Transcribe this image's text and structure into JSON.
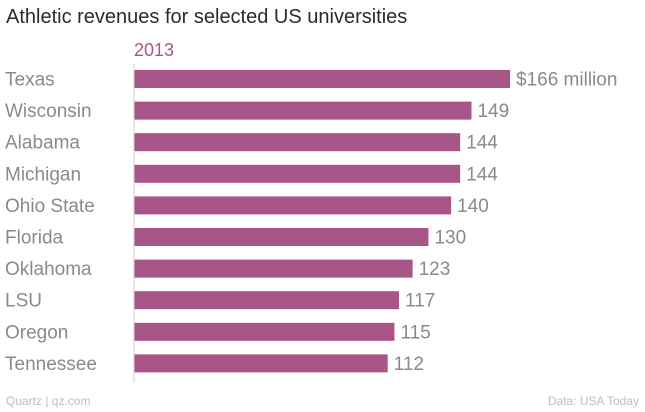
{
  "chart_data": {
    "type": "bar",
    "orientation": "horizontal",
    "title": "Athletic revenues for selected US universities",
    "series": [
      {
        "name": "2013",
        "color": "#a85588",
        "values": [
          166,
          149,
          144,
          144,
          140,
          130,
          123,
          117,
          115,
          112
        ]
      }
    ],
    "categories": [
      "Texas",
      "Wisconsin",
      "Alabama",
      "Michigan",
      "Ohio State",
      "Florida",
      "Oklahoma",
      "LSU",
      "Oregon",
      "Tennessee"
    ],
    "value_labels": [
      "$166 million",
      "149",
      "144",
      "144",
      "140",
      "130",
      "123",
      "117",
      "115",
      "112"
    ],
    "xlim": [
      0,
      166
    ],
    "grid": false,
    "legend": "top-left"
  },
  "footer": {
    "credit": "Quartz | qz.com",
    "source": "Data: USA Today"
  },
  "colors": {
    "bar": "#a85588",
    "label": "#8a8a8a",
    "title": "#2b2b2b",
    "axis": "#cfcfcf"
  }
}
